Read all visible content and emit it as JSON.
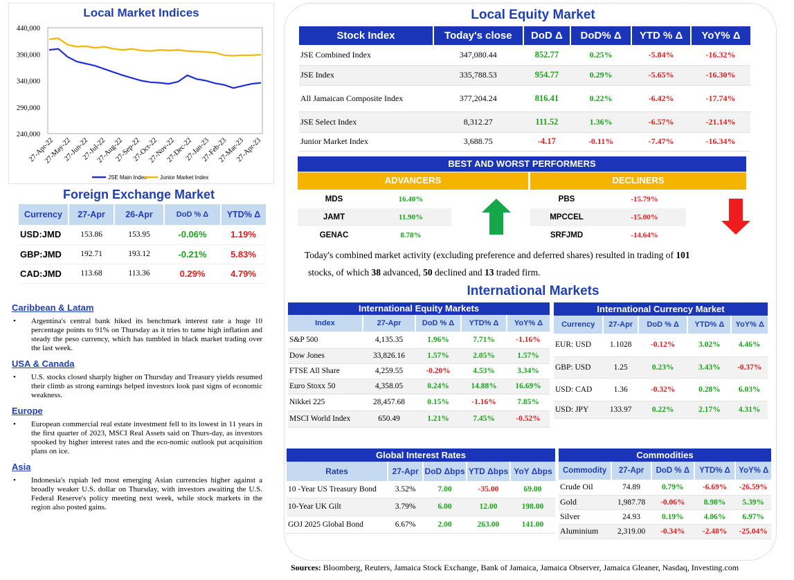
{
  "left_chart": {
    "title": "Local Market Indices",
    "legend": [
      "JSE Main Index",
      "Junior Market Index"
    ]
  },
  "chart_data": {
    "type": "line",
    "title": "Local Market Indices",
    "x_ticks": [
      "27-Apr-22",
      "27-May-22",
      "27-Jun-22",
      "27-Jul-22",
      "27-Aug-22",
      "27-Sep-22",
      "27-Oct-22",
      "27-Nov-22",
      "27-Dec-22",
      "27-Jan-23",
      "27-Feb-23",
      "27-Mar-23",
      "27-Apr-23"
    ],
    "y_ticks": [
      "440,000",
      "390,000",
      "340,000",
      "290,000",
      "240,000"
    ],
    "ylim": [
      240000,
      440000
    ],
    "series": [
      {
        "name": "JSE Main Index",
        "color": "#1f2fd6",
        "values": [
          398000,
          400000,
          385000,
          376000,
          372000,
          368000,
          362000,
          356000,
          350000,
          345000,
          340000,
          337000,
          336000,
          334000,
          338000,
          350000,
          343000,
          340000,
          335000,
          332000,
          326000,
          330000,
          334000,
          336000
        ]
      },
      {
        "name": "Junior Market Index",
        "color": "#f5b400",
        "values": [
          418000,
          420000,
          408000,
          404000,
          405000,
          402000,
          404000,
          400000,
          398000,
          400000,
          397000,
          396000,
          398000,
          397000,
          398000,
          396000,
          395000,
          394000,
          393000,
          388000,
          387000,
          388000,
          388000,
          389000
        ]
      }
    ]
  },
  "fx": {
    "title": "Foreign Exchange Market",
    "headers": [
      "Currency",
      "27-Apr",
      "26-Apr",
      "DoD % Δ",
      "YTD% Δ"
    ],
    "rows": [
      {
        "c": "USD:JMD",
        "a": "153.86",
        "b": "153.95",
        "d": "-0.06%",
        "y": "1.19%",
        "dc": "green",
        "yc": "red"
      },
      {
        "c": "GBP:JMD",
        "a": "192.71",
        "b": "193.12",
        "d": "-0.21%",
        "y": "5.83%",
        "dc": "green",
        "yc": "red"
      },
      {
        "c": "CAD:JMD",
        "a": "113.68",
        "b": "113.36",
        "d": "0.29%",
        "y": "4.79%",
        "dc": "red",
        "yc": "red"
      }
    ]
  },
  "news": [
    {
      "h": "Caribbean & Latam",
      "p": "Argentina's central bank hiked its benchmark interest rate a huge 10 percentage points to 91% on Thursday as it tries to tame high inflation and steady the peso currency, which has tumbled in black market trading over the last week."
    },
    {
      "h": "USA & Canada",
      "p": "U.S. stocks closed sharply higher on Thursday and Treasury yields resumed their climb as strong earnings helped investors look past signs of economic weakness."
    },
    {
      "h": "Europe",
      "p": "European commercial real estate investment fell to its lowest in 11 years in the first quarter of 2023, MSCI Real Assets said on Thurs-day, as investors spooked by higher interest rates and the eco-nomic outlook put acquisition plans on ice."
    },
    {
      "h": "Asia",
      "p": "Indonesia's rupiah led most emerging Asian currencies higher against a broadly weaker U.S. dollar on Thursday, with investors awaiting the U.S. Federal Reserve's policy meeting next week, while stock markets in the region also posted gains."
    }
  ],
  "equity": {
    "title": "Local Equity Market",
    "headers": [
      "Stock Index",
      "Today's close",
      "DoD  Δ",
      "DoD% Δ",
      "YTD % Δ",
      "YoY% Δ"
    ],
    "rows": [
      {
        "n": "JSE Combined Index",
        "c": "347,080.44",
        "d": "852.77",
        "dp": "0.25%",
        "y": "-5.84%",
        "yy": "-16.32%",
        "dc": "green"
      },
      {
        "n": "JSE Index",
        "c": "335,788.53",
        "d": "954.77",
        "dp": "0.29%",
        "y": "-5.65%",
        "yy": "-16.30%",
        "dc": "green"
      },
      {
        "n": "All Jamaican Composite Index",
        "c": "377,204.24",
        "d": "816.41",
        "dp": "0.22%",
        "y": "-6.42%",
        "yy": "-17.74%",
        "dc": "green"
      },
      {
        "n": "JSE Select Index",
        "c": "8,312.27",
        "d": "111.52",
        "dp": "1.36%",
        "y": "-6.57%",
        "yy": "-21.14%",
        "dc": "green"
      },
      {
        "n": "Junior Market Index",
        "c": "3,688.75",
        "d": "-4.17",
        "dp": "-0.11%",
        "y": "-7.47%",
        "yy": "-16.34%",
        "dc": "red"
      }
    ]
  },
  "performers": {
    "title": "BEST AND WORST PERFORMERS",
    "adv_label": "ADVANCERS",
    "dec_label": "DECLINERS",
    "advancers": [
      {
        "s": "MDS",
        "v": "16.40%"
      },
      {
        "s": "JAMT",
        "v": "11.90%"
      },
      {
        "s": "GENAC",
        "v": "8.78%"
      }
    ],
    "decliners": [
      {
        "s": "PBS",
        "v": "-15.79%"
      },
      {
        "s": "MPCCEL",
        "v": "-15.00%"
      },
      {
        "s": "SRFJMD",
        "v": "-14.64%"
      }
    ]
  },
  "summary": {
    "t1": "Today's combined market activity (excluding preference and deferred shares) resulted in trading of ",
    "n_traded": "101",
    "t2": " stocks, of which ",
    "n_adv": "38",
    "t3": " advanced, ",
    "n_dec": "50",
    "t4": " declined and ",
    "n_firm": "13",
    "t5": " traded firm."
  },
  "intl": {
    "title": "International Markets",
    "equity_title": "International Equity Markets",
    "equity_headers": [
      "Index",
      "27-Apr",
      "DoD % Δ",
      "YTD% Δ",
      "YoY% Δ"
    ],
    "equity_rows": [
      {
        "n": "S&P 500",
        "v": "4,135.35",
        "d": "1.96%",
        "y": "7.71%",
        "yy": "-1.16%",
        "dc": "green",
        "yc": "green",
        "yyc": "red"
      },
      {
        "n": "Dow Jones",
        "v": "33,826.16",
        "d": "1.57%",
        "y": "2.05%",
        "yy": "1.57%",
        "dc": "green",
        "yc": "green",
        "yyc": "green"
      },
      {
        "n": "FTSE All Share",
        "v": "4,259.55",
        "d": "-0.20%",
        "y": "4.53%",
        "yy": "3.34%",
        "dc": "red",
        "yc": "green",
        "yyc": "green"
      },
      {
        "n": "Euro Stoxx 50",
        "v": "4,358.05",
        "d": "0.24%",
        "y": "14.88%",
        "yy": "16.69%",
        "dc": "green",
        "yc": "green",
        "yyc": "green"
      },
      {
        "n": "Nikkei 225",
        "v": "28,457.68",
        "d": "0.15%",
        "y": "-1.16%",
        "yy": "7.85%",
        "dc": "green",
        "yc": "red",
        "yyc": "green"
      },
      {
        "n": "MSCI World Index",
        "v": "650.49",
        "d": "1.21%",
        "y": "7.45%",
        "yy": "-0.52%",
        "dc": "green",
        "yc": "green",
        "yyc": "red"
      }
    ],
    "currency_title": "International Currency Market",
    "currency_headers": [
      "Currency",
      "27-Apr",
      "DoD % Δ",
      "YTD% Δ",
      "YoY% Δ"
    ],
    "currency_rows": [
      {
        "n": "EUR: USD",
        "v": "1.1028",
        "d": "-0.12%",
        "y": "3.02%",
        "yy": "4.46%",
        "dc": "red",
        "yc": "green",
        "yyc": "green"
      },
      {
        "n": "GBP: USD",
        "v": "1.25",
        "d": "0.23%",
        "y": "3.43%",
        "yy": "-0.37%",
        "dc": "green",
        "yc": "green",
        "yyc": "red"
      },
      {
        "n": "USD: CAD",
        "v": "1.36",
        "d": "-0.32%",
        "y": "0.28%",
        "yy": "6.03%",
        "dc": "red",
        "yc": "green",
        "yyc": "green"
      },
      {
        "n": "USD: JPY",
        "v": "133.97",
        "d": "0.22%",
        "y": "2.17%",
        "yy": "4.31%",
        "dc": "green",
        "yc": "green",
        "yyc": "green"
      }
    ],
    "rates_title": "Global Interest Rates",
    "rates_headers": [
      "Rates",
      "27-Apr",
      "DoD Δbps",
      "YTD Δbps",
      "YoY Δbps"
    ],
    "rates_rows": [
      {
        "n": "10 -Year US Treasury Bond",
        "v": "3.52%",
        "d": "7.00",
        "y": "-35.00",
        "yy": "69.00",
        "dc": "green",
        "yc": "red",
        "yyc": "green"
      },
      {
        "n": "10-Year UK Gilt",
        "v": "3.79%",
        "d": "6.00",
        "y": "12.00",
        "yy": "198.00",
        "dc": "green",
        "yc": "green",
        "yyc": "green"
      },
      {
        "n": "GOJ 2025 Global Bond",
        "v": "6.67%",
        "d": "2.00",
        "y": "263.00",
        "yy": "141.00",
        "dc": "green",
        "yc": "green",
        "yyc": "green"
      }
    ],
    "comm_title": "Commodities",
    "comm_headers": [
      "Commodity",
      "27-Apr",
      "DoD % Δ",
      "YTD% Δ",
      "YoY% Δ"
    ],
    "comm_rows": [
      {
        "n": "Crude Oil",
        "v": "74.89",
        "d": "0.79%",
        "y": "-6.69%",
        "yy": "-26.59%",
        "dc": "green",
        "yc": "red",
        "yyc": "red"
      },
      {
        "n": "Gold",
        "v": "1,987.78",
        "d": "-0.06%",
        "y": "8.98%",
        "yy": "5.39%",
        "dc": "red",
        "yc": "green",
        "yyc": "green"
      },
      {
        "n": "Silver",
        "v": "24.93",
        "d": "0.19%",
        "y": "4.06%",
        "yy": "6.97%",
        "dc": "green",
        "yc": "green",
        "yyc": "green"
      },
      {
        "n": "Aluminium",
        "v": "2,319.00",
        "d": "-0.34%",
        "y": "-2.48%",
        "yy": "-25.04%",
        "dc": "red",
        "yc": "red",
        "yyc": "red"
      }
    ]
  },
  "sources": {
    "label": "Sources:",
    "text": " Bloomberg, Reuters, Jamaica Stock Exchange, Bank of Jamaica, Jamaica Observer, Jamaica Gleaner, Nasdaq, Investing.com"
  }
}
